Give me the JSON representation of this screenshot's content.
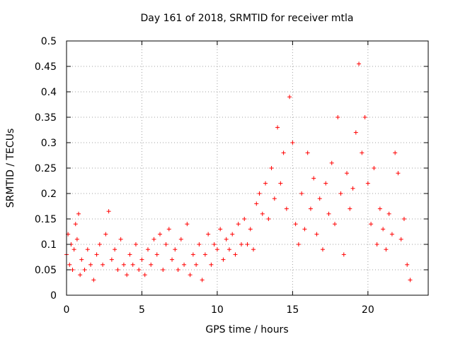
{
  "chart_data": {
    "type": "scatter",
    "title": "Day 161 of 2018, SRMTID for receiver mtla",
    "xlabel": "GPS time / hours",
    "ylabel": "SRMTID / TECUs",
    "xlim": [
      0,
      24
    ],
    "ylim": [
      0,
      0.5
    ],
    "xticks": [
      0,
      5,
      10,
      15,
      20
    ],
    "yticks": [
      0,
      0.05,
      0.1,
      0.15,
      0.2,
      0.25,
      0.3,
      0.35,
      0.4,
      0.45,
      0.5
    ],
    "grid": true,
    "marker": "+",
    "color": "#ff0000",
    "series": [
      {
        "name": "SRMTID",
        "points": [
          [
            0.0,
            0.08
          ],
          [
            0.1,
            0.12
          ],
          [
            0.2,
            0.06
          ],
          [
            0.3,
            0.1
          ],
          [
            0.4,
            0.05
          ],
          [
            0.5,
            0.09
          ],
          [
            0.6,
            0.14
          ],
          [
            0.7,
            0.11
          ],
          [
            0.8,
            0.16
          ],
          [
            0.9,
            0.04
          ],
          [
            1.0,
            0.07
          ],
          [
            1.2,
            0.05
          ],
          [
            1.4,
            0.09
          ],
          [
            1.6,
            0.06
          ],
          [
            1.8,
            0.03
          ],
          [
            2.0,
            0.08
          ],
          [
            2.2,
            0.1
          ],
          [
            2.4,
            0.06
          ],
          [
            2.6,
            0.12
          ],
          [
            2.8,
            0.165
          ],
          [
            3.0,
            0.07
          ],
          [
            3.2,
            0.09
          ],
          [
            3.4,
            0.05
          ],
          [
            3.6,
            0.11
          ],
          [
            3.8,
            0.06
          ],
          [
            4.0,
            0.04
          ],
          [
            4.2,
            0.08
          ],
          [
            4.4,
            0.06
          ],
          [
            4.6,
            0.1
          ],
          [
            4.8,
            0.05
          ],
          [
            5.0,
            0.07
          ],
          [
            5.2,
            0.04
          ],
          [
            5.4,
            0.09
          ],
          [
            5.6,
            0.06
          ],
          [
            5.8,
            0.11
          ],
          [
            6.0,
            0.08
          ],
          [
            6.2,
            0.12
          ],
          [
            6.4,
            0.05
          ],
          [
            6.6,
            0.1
          ],
          [
            6.8,
            0.13
          ],
          [
            7.0,
            0.07
          ],
          [
            7.2,
            0.09
          ],
          [
            7.4,
            0.05
          ],
          [
            7.6,
            0.11
          ],
          [
            7.8,
            0.06
          ],
          [
            8.0,
            0.14
          ],
          [
            8.2,
            0.04
          ],
          [
            8.4,
            0.08
          ],
          [
            8.6,
            0.06
          ],
          [
            8.8,
            0.1
          ],
          [
            9.0,
            0.03
          ],
          [
            9.2,
            0.08
          ],
          [
            9.4,
            0.12
          ],
          [
            9.6,
            0.06
          ],
          [
            9.8,
            0.1
          ],
          [
            10.0,
            0.09
          ],
          [
            10.2,
            0.13
          ],
          [
            10.4,
            0.07
          ],
          [
            10.6,
            0.11
          ],
          [
            10.8,
            0.09
          ],
          [
            11.0,
            0.12
          ],
          [
            11.2,
            0.08
          ],
          [
            11.4,
            0.14
          ],
          [
            11.6,
            0.1
          ],
          [
            11.8,
            0.15
          ],
          [
            12.0,
            0.1
          ],
          [
            12.2,
            0.13
          ],
          [
            12.4,
            0.09
          ],
          [
            12.6,
            0.18
          ],
          [
            12.8,
            0.2
          ],
          [
            13.0,
            0.16
          ],
          [
            13.2,
            0.22
          ],
          [
            13.4,
            0.15
          ],
          [
            13.6,
            0.25
          ],
          [
            13.8,
            0.19
          ],
          [
            14.0,
            0.33
          ],
          [
            14.2,
            0.22
          ],
          [
            14.4,
            0.28
          ],
          [
            14.6,
            0.17
          ],
          [
            14.8,
            0.39
          ],
          [
            15.0,
            0.3
          ],
          [
            15.2,
            0.14
          ],
          [
            15.4,
            0.1
          ],
          [
            15.6,
            0.2
          ],
          [
            15.8,
            0.13
          ],
          [
            16.0,
            0.28
          ],
          [
            16.2,
            0.17
          ],
          [
            16.4,
            0.23
          ],
          [
            16.6,
            0.12
          ],
          [
            16.8,
            0.19
          ],
          [
            17.0,
            0.09
          ],
          [
            17.2,
            0.22
          ],
          [
            17.4,
            0.16
          ],
          [
            17.6,
            0.26
          ],
          [
            17.8,
            0.14
          ],
          [
            18.0,
            0.35
          ],
          [
            18.2,
            0.2
          ],
          [
            18.4,
            0.08
          ],
          [
            18.6,
            0.24
          ],
          [
            18.8,
            0.17
          ],
          [
            19.0,
            0.21
          ],
          [
            19.2,
            0.32
          ],
          [
            19.4,
            0.455
          ],
          [
            19.6,
            0.28
          ],
          [
            19.8,
            0.35
          ],
          [
            20.0,
            0.22
          ],
          [
            20.2,
            0.14
          ],
          [
            20.4,
            0.25
          ],
          [
            20.6,
            0.1
          ],
          [
            20.8,
            0.17
          ],
          [
            21.0,
            0.13
          ],
          [
            21.2,
            0.09
          ],
          [
            21.4,
            0.16
          ],
          [
            21.6,
            0.12
          ],
          [
            21.8,
            0.28
          ],
          [
            22.0,
            0.24
          ],
          [
            22.2,
            0.11
          ],
          [
            22.4,
            0.15
          ],
          [
            22.6,
            0.06
          ],
          [
            22.8,
            0.03
          ]
        ]
      }
    ]
  }
}
